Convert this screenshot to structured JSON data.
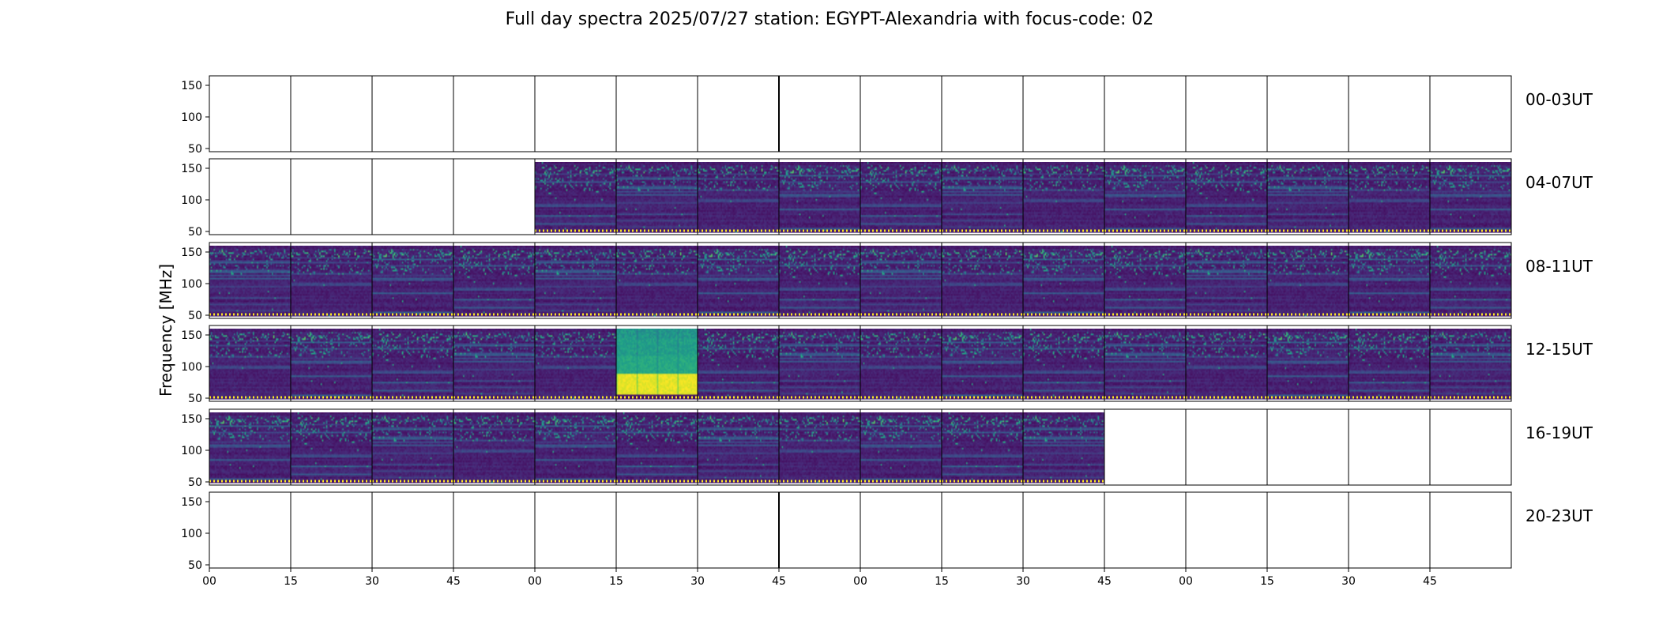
{
  "chart_data": {
    "type": "heatmap",
    "title": "Full day spectra 2025/07/27 station: EGYPT-Alexandria with focus-code: 02",
    "xlabel": "",
    "ylabel": "Frequency [MHz]",
    "colormap": "viridis",
    "colors": {
      "low": "#440154",
      "mid": "#21908d",
      "high": "#fde725"
    },
    "y_ticks": [
      50,
      100,
      150
    ],
    "ylim": [
      45,
      165
    ],
    "x_tick_labels": [
      "00",
      "15",
      "30",
      "45",
      "00",
      "15",
      "30",
      "45",
      "00",
      "15",
      "30",
      "45",
      "00",
      "15",
      "30",
      "45"
    ],
    "minutes_per_panel": 15,
    "rows": [
      {
        "label": "00-03UT",
        "start_hour": 0,
        "panels_with_data": []
      },
      {
        "label": "04-07UT",
        "start_hour": 4,
        "panels_with_data": [
          4,
          5,
          6,
          7,
          8,
          9,
          10,
          11,
          12,
          13,
          14,
          15
        ]
      },
      {
        "label": "08-11UT",
        "start_hour": 8,
        "panels_with_data": [
          0,
          1,
          2,
          3,
          4,
          5,
          6,
          7,
          8,
          9,
          10,
          11,
          12,
          13,
          14,
          15
        ]
      },
      {
        "label": "12-15UT",
        "start_hour": 12,
        "panels_with_data": [
          0,
          1,
          2,
          3,
          4,
          5,
          6,
          7,
          8,
          9,
          10,
          11,
          12,
          13,
          14,
          15
        ],
        "saturated_panels": [
          5
        ]
      },
      {
        "label": "16-19UT",
        "start_hour": 16,
        "panels_with_data": [
          0,
          1,
          2,
          3,
          4,
          5,
          6,
          7,
          8,
          9,
          10
        ]
      },
      {
        "label": "20-23UT",
        "start_hour": 20,
        "panels_with_data": []
      }
    ]
  }
}
